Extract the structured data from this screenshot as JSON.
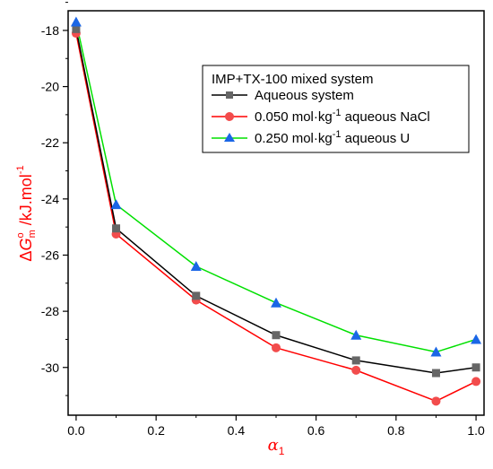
{
  "chart_data": {
    "type": "line",
    "x": [
      0.0,
      0.1,
      0.3,
      0.5,
      0.7,
      0.9,
      1.0
    ],
    "series": [
      {
        "name": "Aqueous system",
        "color": "#000000",
        "marker_color": "#666666",
        "marker": "square",
        "values": [
          -17.95,
          -25.05,
          -27.45,
          -28.85,
          -29.75,
          -30.2,
          -30.0
        ]
      },
      {
        "name": "0.050 mol·kg⁻¹ aqueous NaCl",
        "color": "#ff0000",
        "marker_color": "#f24c4c",
        "marker": "circle",
        "values": [
          -18.1,
          -25.25,
          -27.6,
          -29.3,
          -30.1,
          -31.2,
          -30.5
        ]
      },
      {
        "name": "0.250 mol·kg⁻¹ aqueous U",
        "color": "#00e000",
        "marker_color": "#1a66e6",
        "marker": "triangle",
        "values": [
          -17.7,
          -24.2,
          -26.4,
          -27.7,
          -28.85,
          -29.45,
          -29.0
        ]
      }
    ],
    "xlim": [
      -0.02,
      1.02
    ],
    "ylim": [
      -31.7,
      -17.3
    ],
    "xticks": [
      "0.0",
      "0.2",
      "0.4",
      "0.6",
      "0.8",
      "1.0"
    ],
    "xtick_values": [
      0.0,
      0.2,
      0.4,
      0.6,
      0.8,
      1.0
    ],
    "yticks": [
      "-18",
      "-20",
      "-22",
      "-24",
      "-26",
      "-28",
      "-30"
    ],
    "ytick_values": [
      -18,
      -20,
      -22,
      -24,
      -26,
      -28,
      -30
    ],
    "xlabel": "α1",
    "ylabel": "ΔG⁰m /kJ.mol⁻¹",
    "legend_title": "IMP+TX-100 mixed system",
    "legend_position": "top-right",
    "axis_title_color": "#ff0000",
    "grid": false
  }
}
